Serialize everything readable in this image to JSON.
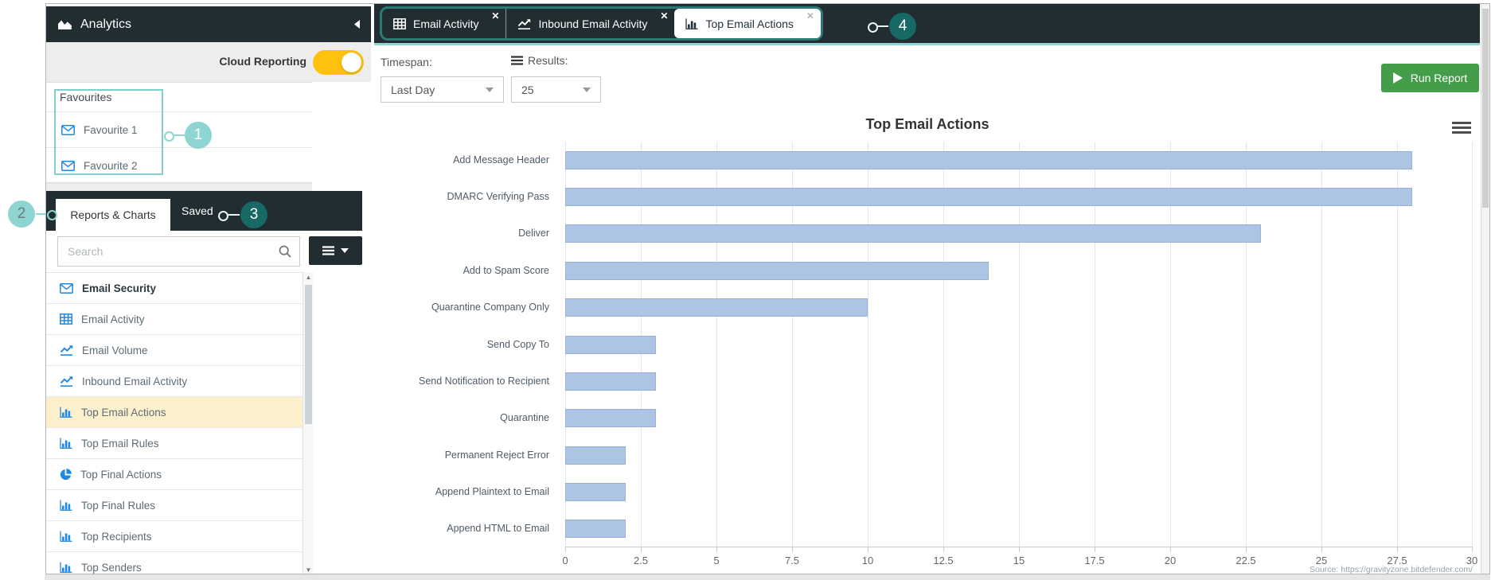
{
  "colors": {
    "header_dark": "#222d32",
    "accent_teal_light": "#8ed5d1",
    "accent_teal_dark": "#176966",
    "outline_teal": "#7fd0cc",
    "icon_blue": "#1e88e5",
    "selected_row_bg": "#fdf1cd",
    "toggle_yellow": "#fdc10e",
    "run_button_green": "#449d48",
    "bar_fill": "#aec4e3"
  },
  "annotations": {
    "items": [
      {
        "number": "1"
      },
      {
        "number": "2"
      },
      {
        "number": "3"
      },
      {
        "number": "4"
      }
    ]
  },
  "sidebar": {
    "title": "Analytics",
    "collapse_icon": "caret-left",
    "cloud_reporting": {
      "label": "Cloud Reporting",
      "state": "on"
    },
    "favourites": {
      "header": "Favourites",
      "items": [
        {
          "label": "Favourite 1",
          "icon": "envelope"
        },
        {
          "label": "Favourite 2",
          "icon": "envelope"
        }
      ]
    },
    "tabs": [
      {
        "label": "Reports & Charts",
        "active": true
      },
      {
        "label": "Saved",
        "active": false
      }
    ],
    "search": {
      "placeholder": "Search",
      "icon": "search"
    },
    "filter_button": {
      "icons": [
        "hamburger",
        "caret-down"
      ]
    },
    "list": [
      {
        "label": "Email Security",
        "icon": "envelope",
        "bold": true,
        "selected": false
      },
      {
        "label": "Email Activity",
        "icon": "table",
        "bold": false,
        "selected": false
      },
      {
        "label": "Email Volume",
        "icon": "line-chart",
        "bold": false,
        "selected": false
      },
      {
        "label": "Inbound Email Activity",
        "icon": "line-chart",
        "bold": false,
        "selected": false
      },
      {
        "label": "Top Email Actions",
        "icon": "bar-chart",
        "bold": false,
        "selected": true
      },
      {
        "label": "Top Email Rules",
        "icon": "bar-chart",
        "bold": false,
        "selected": false
      },
      {
        "label": "Top Final Actions",
        "icon": "pie-chart",
        "bold": false,
        "selected": false
      },
      {
        "label": "Top Final Rules",
        "icon": "bar-chart",
        "bold": false,
        "selected": false
      },
      {
        "label": "Top Recipients",
        "icon": "bar-chart",
        "bold": false,
        "selected": false
      },
      {
        "label": "Top Senders",
        "icon": "bar-chart",
        "bold": false,
        "selected": false
      }
    ]
  },
  "top_tabs": [
    {
      "label": "Email Activity",
      "icon": "table",
      "active": false,
      "close": "x"
    },
    {
      "label": "Inbound Email Activity",
      "icon": "line-chart",
      "active": false,
      "close": "x"
    },
    {
      "label": "Top Email Actions",
      "icon": "bar-chart",
      "active": true,
      "close": "x"
    }
  ],
  "toolbar": {
    "timespan_label": "Timespan:",
    "timespan_value": "Last Day",
    "results_label": "Results:",
    "results_icon": "hamburger",
    "results_value": "25",
    "run_report_label": "Run Report"
  },
  "chart_data": {
    "type": "bar",
    "orientation": "horizontal",
    "title": "Top Email Actions",
    "categories": [
      "Add Message Header",
      "DMARC Verifying Pass",
      "Deliver",
      "Add to Spam Score",
      "Quarantine Company Only",
      "Send Copy To",
      "Send Notification to Recipient",
      "Quarantine",
      "Permanent Reject Error",
      "Append Plaintext to Email",
      "Append HTML to Email"
    ],
    "values": [
      28,
      28,
      23,
      14,
      10,
      3,
      3,
      3,
      2,
      2,
      2
    ],
    "xlim": [
      0,
      30
    ],
    "xtick_values": [
      0,
      2.5,
      5,
      7.5,
      10,
      12.5,
      15,
      17.5,
      20,
      22.5,
      25,
      27.5,
      30
    ],
    "xtick_labels": [
      "0",
      "2.5",
      "5",
      "7.5",
      "10",
      "12.5",
      "15",
      "17.5",
      "20",
      "22.5",
      "25",
      "27.5",
      "30"
    ],
    "grid": true,
    "legend": false,
    "bar_color": "#aec4e3",
    "source_note": "Source: https://gravityzone.bitdefender.com/"
  }
}
